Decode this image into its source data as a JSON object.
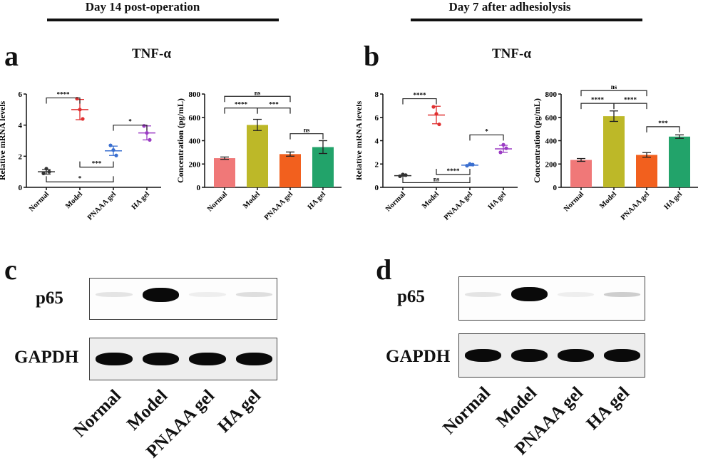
{
  "headers": [
    {
      "text": "Day 14 post-operation"
    },
    {
      "text": "Day 7 after adhesiolysis"
    }
  ],
  "panels": {
    "a": {
      "label": "a",
      "title": "TNF-α"
    },
    "b": {
      "label": "b",
      "title": "TNF-α"
    },
    "c": {
      "label": "c"
    },
    "d": {
      "label": "d"
    }
  },
  "groups": [
    "Normal",
    "Model",
    "PNAAA gel",
    "HA gel"
  ],
  "colors": {
    "scatter": [
      "#333333",
      "#e03030",
      "#3a6fd0",
      "#9b3cc4"
    ],
    "bars": [
      "#f07878",
      "#bdb828",
      "#f2601e",
      "#22a36a"
    ]
  },
  "chart_data": [
    {
      "id": "a-mrna",
      "type": "scatter",
      "title": "TNF-α (Day 14 post-operation)",
      "xlabel": "",
      "ylabel": "Relative mRNA levels",
      "categories": [
        "Normal",
        "Model",
        "PNAAA gel",
        "HA gel"
      ],
      "ylim": [
        0,
        6
      ],
      "yticks": [
        0,
        2,
        4,
        6
      ],
      "mean": [
        1.0,
        5.0,
        2.35,
        3.5
      ],
      "sd": [
        0.15,
        0.65,
        0.3,
        0.45
      ],
      "points": [
        [
          0.9,
          1.2,
          1.0
        ],
        [
          5.7,
          5.0,
          4.4
        ],
        [
          2.7,
          2.4,
          2.05
        ],
        [
          3.95,
          3.5,
          3.05
        ]
      ],
      "significance": [
        {
          "from": 0,
          "to": 1,
          "label": "****",
          "level": 5.75
        },
        {
          "from": 2,
          "to": 3,
          "label": "*",
          "level": 4.0
        },
        {
          "from": 1,
          "to": 2,
          "label": "***",
          "level": 1.3,
          "below": true
        },
        {
          "from": 0,
          "to": 2,
          "label": "*",
          "level": 0.35,
          "below": true
        }
      ]
    },
    {
      "id": "a-elisa",
      "type": "bar",
      "title": "TNF-α (Day 14 post-operation)",
      "xlabel": "",
      "ylabel": "Concentration (pg/mL)",
      "categories": [
        "Normal",
        "Model",
        "PNAAA gel",
        "HA gel"
      ],
      "ylim": [
        0,
        800
      ],
      "yticks": [
        0,
        200,
        400,
        600,
        800
      ],
      "values": [
        250,
        535,
        285,
        345
      ],
      "errors": [
        10,
        48,
        18,
        55
      ],
      "significance": [
        {
          "from": 0,
          "to": 2,
          "label": "ns",
          "level": 780
        },
        {
          "from": 0,
          "to": 1,
          "label": "****",
          "level": 680
        },
        {
          "from": 1,
          "to": 2,
          "label": "***",
          "level": 680
        },
        {
          "from": 2,
          "to": 3,
          "label": "ns",
          "level": 460
        }
      ]
    },
    {
      "id": "b-mrna",
      "type": "scatter",
      "title": "TNF-α (Day 7 after adhesiolysis)",
      "xlabel": "",
      "ylabel": "Relative mRNA levels",
      "categories": [
        "Normal",
        "Model",
        "PNAAA gel",
        "HA gel"
      ],
      "ylim": [
        0,
        8
      ],
      "yticks": [
        0,
        2,
        4,
        6,
        8
      ],
      "mean": [
        1.0,
        6.2,
        1.9,
        3.3
      ],
      "sd": [
        0.05,
        0.75,
        0.05,
        0.3
      ],
      "points": [
        [
          0.95,
          1.1,
          1.05
        ],
        [
          6.9,
          6.3,
          5.4
        ],
        [
          1.85,
          2.0,
          1.95
        ],
        [
          3.0,
          3.65,
          3.35
        ]
      ],
      "significance": [
        {
          "from": 0,
          "to": 1,
          "label": "****",
          "level": 7.6
        },
        {
          "from": 2,
          "to": 3,
          "label": "*",
          "level": 4.5
        },
        {
          "from": 1,
          "to": 2,
          "label": "****",
          "level": 1.1,
          "below": true
        },
        {
          "from": 0,
          "to": 2,
          "label": "ns",
          "level": 0.4,
          "below": true
        }
      ]
    },
    {
      "id": "b-elisa",
      "type": "bar",
      "title": "TNF-α (Day 7 after adhesiolysis)",
      "xlabel": "",
      "ylabel": "Concentration (pg/mL)",
      "categories": [
        "Normal",
        "Model",
        "PNAAA gel",
        "HA gel"
      ],
      "ylim": [
        0,
        800
      ],
      "yticks": [
        0,
        200,
        400,
        600,
        800
      ],
      "values": [
        235,
        610,
        278,
        435
      ],
      "errors": [
        12,
        45,
        20,
        15
      ],
      "significance": [
        {
          "from": 0,
          "to": 2,
          "label": "ns",
          "level": 830
        },
        {
          "from": 0,
          "to": 1,
          "label": "****",
          "level": 720
        },
        {
          "from": 1,
          "to": 2,
          "label": "****",
          "level": 720
        },
        {
          "from": 2,
          "to": 3,
          "label": "***",
          "level": 520
        }
      ]
    }
  ],
  "westerns": {
    "c": {
      "rows": [
        {
          "label": "p65",
          "intensity": [
            0.08,
            1.0,
            0.05,
            0.1
          ]
        },
        {
          "label": "GAPDH",
          "intensity": [
            1.0,
            1.0,
            1.0,
            1.0
          ]
        }
      ],
      "lanes": [
        "Normal",
        "Model",
        "PNAAA gel",
        "HA gel"
      ]
    },
    "d": {
      "rows": [
        {
          "label": "p65",
          "intensity": [
            0.08,
            1.0,
            0.05,
            0.15
          ]
        },
        {
          "label": "GAPDH",
          "intensity": [
            1.0,
            1.0,
            1.0,
            1.0
          ]
        }
      ],
      "lanes": [
        "Normal",
        "Model",
        "PNAAA gel",
        "HA gel"
      ]
    }
  }
}
